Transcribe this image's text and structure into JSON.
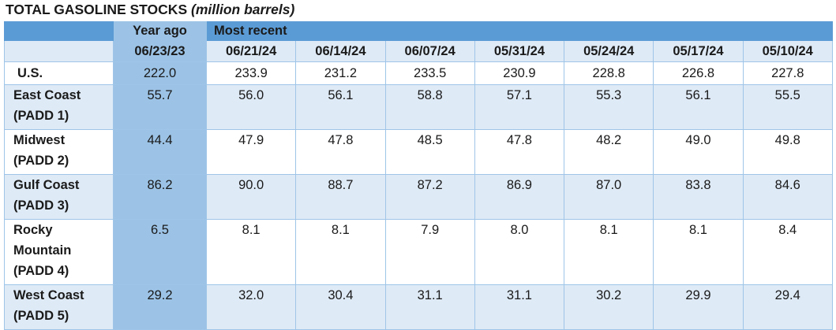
{
  "title": {
    "main": "TOTAL GASOLINE STOCKS",
    "unit": "(million barrels)"
  },
  "header": {
    "year_ago": "Year ago",
    "most_recent": "Most recent",
    "dates": [
      "06/23/23",
      "06/21/24",
      "06/14/24",
      "06/07/24",
      "05/31/24",
      "05/24/24",
      "05/17/24",
      "05/10/24"
    ]
  },
  "rows": [
    {
      "label": [
        "U.S."
      ],
      "values": [
        "222.0",
        "233.9",
        "231.2",
        "233.5",
        "230.9",
        "228.8",
        "226.8",
        "227.8"
      ]
    },
    {
      "label": [
        "East Coast",
        "(PADD 1)"
      ],
      "values": [
        "55.7",
        "56.0",
        "56.1",
        "58.8",
        "57.1",
        "55.3",
        "56.1",
        "55.5"
      ]
    },
    {
      "label": [
        "Midwest",
        "(PADD 2)"
      ],
      "values": [
        "44.4",
        "47.9",
        "47.8",
        "48.5",
        "47.8",
        "48.2",
        "49.0",
        "49.8"
      ]
    },
    {
      "label": [
        "Gulf Coast",
        "(PADD 3)"
      ],
      "values": [
        "86.2",
        "90.0",
        "88.7",
        "87.2",
        "86.9",
        "87.0",
        "83.8",
        "84.6"
      ]
    },
    {
      "label": [
        "Rocky",
        "Mountain",
        "(PADD 4)"
      ],
      "values": [
        "6.5",
        "8.1",
        "8.1",
        "7.9",
        "8.0",
        "8.1",
        "8.1",
        "8.4"
      ]
    },
    {
      "label": [
        "West Coast",
        "(PADD 5)"
      ],
      "values": [
        "29.2",
        "32.0",
        "30.4",
        "31.1",
        "31.1",
        "30.2",
        "29.9",
        "29.4"
      ]
    }
  ],
  "colors": {
    "header_blue": "#5b9bd5",
    "year_ago_column": "#9cc3e6",
    "band_light": "#deeaf6",
    "border": "#9fc5e8"
  }
}
